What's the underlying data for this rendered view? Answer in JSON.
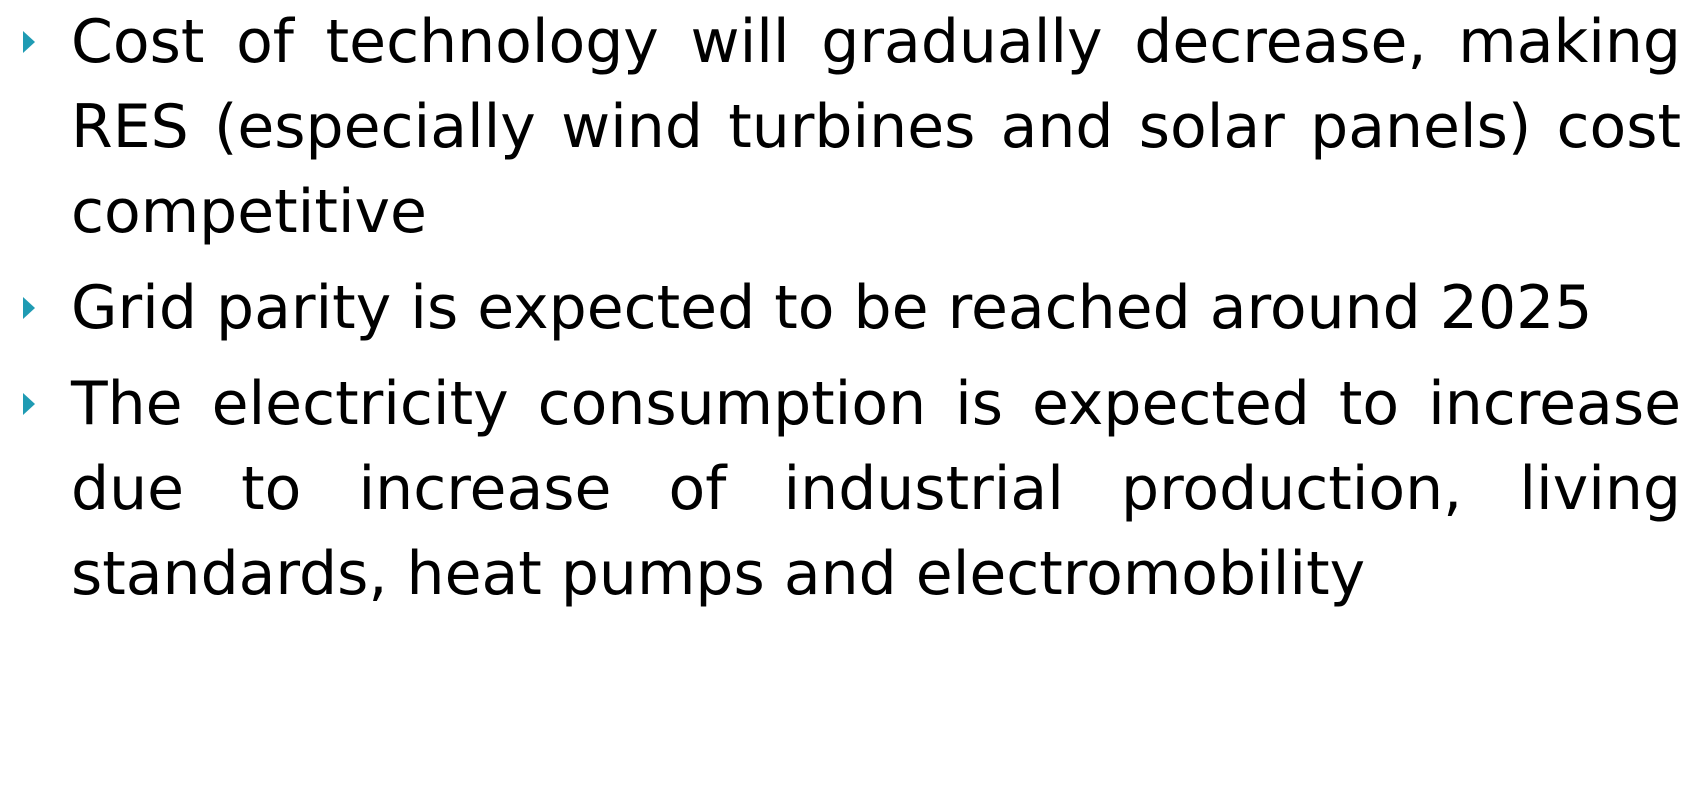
{
  "bullets": [
    "Cost of technology will gradually decrease, making RES (especially wind turbines and solar panels) cost competitive",
    "Grid parity is expected to be reached around 2025",
    "The electricity consumption is expected to increase due to increase of industrial production, living standards, heat pumps and electromobility"
  ]
}
